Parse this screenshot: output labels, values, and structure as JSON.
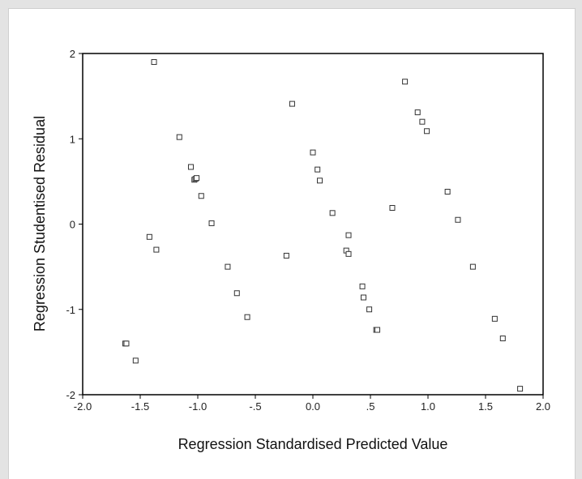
{
  "chart_data": {
    "type": "scatter",
    "xlabel": "Regression Standardised Predicted Value",
    "ylabel": "Regression Studentised Residual",
    "xlim": [
      -2.0,
      2.0
    ],
    "ylim": [
      -2,
      2
    ],
    "xticks": [
      -2.0,
      -1.5,
      -1.0,
      -0.5,
      0.0,
      0.5,
      1.0,
      1.5,
      2.0
    ],
    "xtick_labels": [
      "-2.0",
      "-1.5",
      "-1.0",
      "-.5",
      "0.0",
      ".5",
      "1.0",
      "1.5",
      "2.0"
    ],
    "yticks": [
      2,
      1,
      0,
      -1,
      -2
    ],
    "ytick_labels": [
      "2",
      "1",
      "0",
      "-1",
      "-2"
    ],
    "grid": false,
    "marker": "hollow-square",
    "points": [
      {
        "x": -1.63,
        "y": -1.4
      },
      {
        "x": -1.62,
        "y": -1.4
      },
      {
        "x": -1.54,
        "y": -1.6
      },
      {
        "x": -1.42,
        "y": -0.15
      },
      {
        "x": -1.38,
        "y": 1.9
      },
      {
        "x": -1.36,
        "y": -0.3
      },
      {
        "x": -1.16,
        "y": 1.02
      },
      {
        "x": -1.06,
        "y": 0.67
      },
      {
        "x": -1.03,
        "y": 0.52
      },
      {
        "x": -1.02,
        "y": 0.53
      },
      {
        "x": -1.01,
        "y": 0.54
      },
      {
        "x": -0.97,
        "y": 0.33
      },
      {
        "x": -0.88,
        "y": 0.01
      },
      {
        "x": -0.74,
        "y": -0.5
      },
      {
        "x": -0.66,
        "y": -0.81
      },
      {
        "x": -0.57,
        "y": -1.09
      },
      {
        "x": -0.23,
        "y": -0.37
      },
      {
        "x": -0.18,
        "y": 1.41
      },
      {
        "x": 0.0,
        "y": 0.84
      },
      {
        "x": 0.04,
        "y": 0.64
      },
      {
        "x": 0.06,
        "y": 0.51
      },
      {
        "x": 0.17,
        "y": 0.13
      },
      {
        "x": 0.29,
        "y": -0.31
      },
      {
        "x": 0.31,
        "y": -0.13
      },
      {
        "x": 0.31,
        "y": -0.35
      },
      {
        "x": 0.43,
        "y": -0.73
      },
      {
        "x": 0.44,
        "y": -0.86
      },
      {
        "x": 0.49,
        "y": -1.0
      },
      {
        "x": 0.55,
        "y": -1.24
      },
      {
        "x": 0.56,
        "y": -1.24
      },
      {
        "x": 0.69,
        "y": 0.19
      },
      {
        "x": 0.8,
        "y": 1.67
      },
      {
        "x": 0.91,
        "y": 1.31
      },
      {
        "x": 0.95,
        "y": 1.2
      },
      {
        "x": 0.99,
        "y": 1.09
      },
      {
        "x": 1.17,
        "y": 0.38
      },
      {
        "x": 1.26,
        "y": 0.05
      },
      {
        "x": 1.39,
        "y": -0.5
      },
      {
        "x": 1.58,
        "y": -1.11
      },
      {
        "x": 1.65,
        "y": -1.34
      },
      {
        "x": 1.8,
        "y": -1.93
      }
    ]
  }
}
